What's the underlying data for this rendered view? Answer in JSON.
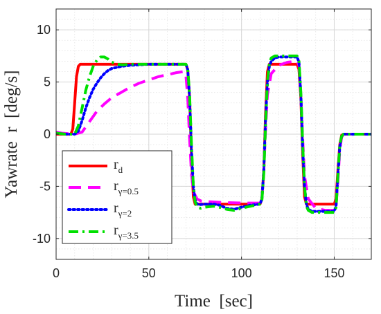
{
  "chart_data": {
    "type": "line",
    "xlabel": "Time  [sec]",
    "ylabel": "Yawrate  r  [deg/s]",
    "xlim": [
      0,
      170
    ],
    "ylim": [
      -12,
      12
    ],
    "xticks": [
      0,
      50,
      100,
      150
    ],
    "xtick_labels": [
      "0",
      "50",
      "100",
      "150"
    ],
    "yticks": [
      -10,
      -5,
      0,
      5,
      10
    ],
    "ytick_labels": [
      "-10",
      "-5",
      "0",
      "5",
      "10"
    ],
    "grid": true,
    "minor_grid": true,
    "legend_position": "lower-left",
    "series": [
      {
        "name": "r_d",
        "label_main": "r",
        "label_sub": "d",
        "color": "#ff0000",
        "style": "solid",
        "x": [
          0,
          8,
          9,
          10,
          11,
          12,
          13,
          70,
          71,
          72,
          73,
          74,
          75,
          110,
          111,
          112,
          113,
          114,
          115,
          130,
          131,
          132,
          133,
          134,
          135,
          150,
          151,
          152,
          153,
          154,
          155,
          170
        ],
        "y": [
          0,
          0,
          0.5,
          3,
          5.5,
          6.5,
          6.7,
          6.7,
          6.2,
          3.5,
          -2,
          -6,
          -6.7,
          -6.7,
          -6.2,
          -3.5,
          2,
          6,
          6.7,
          6.7,
          6.2,
          3.5,
          -2,
          -6,
          -6.7,
          -6.7,
          -6.2,
          -3.5,
          -1,
          -0.1,
          0,
          0
        ]
      },
      {
        "name": "r_γ=0.5",
        "label_main": "r",
        "label_sub": "γ=0.5",
        "color": "#ff00ff",
        "style": "dash",
        "x": [
          0,
          3,
          10,
          14,
          18,
          22,
          26,
          30,
          35,
          40,
          45,
          50,
          55,
          60,
          65,
          69,
          70,
          71,
          72,
          73,
          74,
          76,
          78,
          80,
          85,
          90,
          100,
          110,
          111,
          112,
          113,
          114,
          116,
          120,
          125,
          130,
          131,
          132,
          133,
          134,
          136,
          140,
          145,
          150,
          151,
          152,
          153,
          154,
          155,
          157,
          160,
          170
        ],
        "y": [
          0.2,
          0.1,
          0,
          0.2,
          1.2,
          2.2,
          2.9,
          3.5,
          4.0,
          4.5,
          4.9,
          5.2,
          5.5,
          5.7,
          5.9,
          6.0,
          5.6,
          3.5,
          -0.5,
          -3.8,
          -5.5,
          -6.2,
          -6.4,
          -6.45,
          -6.5,
          -6.55,
          -6.6,
          -6.6,
          -6.2,
          -3.5,
          0.5,
          3.8,
          5.8,
          6.6,
          6.9,
          7.0,
          6.6,
          3.8,
          -0.5,
          -4,
          -6.2,
          -7.1,
          -7.3,
          -7.3,
          -6.9,
          -4.5,
          -1.5,
          -0.3,
          0,
          0,
          0,
          0
        ]
      },
      {
        "name": "r_γ=2",
        "label_main": "r",
        "label_sub": "γ=2",
        "color": "#0000ff",
        "style": "dot",
        "x": [
          0,
          5,
          10,
          12,
          14,
          16,
          18,
          20,
          22,
          24,
          26,
          28,
          30,
          35,
          40,
          45,
          50,
          55,
          60,
          65,
          70,
          71,
          72,
          73,
          74,
          75,
          76,
          78,
          80,
          85,
          88,
          92,
          96,
          100,
          105,
          110,
          111,
          112,
          113,
          114,
          115,
          116,
          118,
          120,
          125,
          130,
          131,
          132,
          133,
          134,
          135,
          136,
          138,
          140,
          145,
          150,
          151,
          152,
          153,
          154,
          155,
          157,
          160,
          170
        ],
        "y": [
          0.1,
          0,
          0,
          0.3,
          1.3,
          2.5,
          3.5,
          4.3,
          4.9,
          5.4,
          5.8,
          6.1,
          6.3,
          6.5,
          6.6,
          6.65,
          6.7,
          6.7,
          6.7,
          6.7,
          6.7,
          6.2,
          3.5,
          -1.5,
          -5.0,
          -6.3,
          -6.7,
          -6.75,
          -6.7,
          -6.7,
          -6.8,
          -7.1,
          -7.2,
          -7.0,
          -6.8,
          -6.7,
          -6.2,
          -3.5,
          1.5,
          5.0,
          6.5,
          7.0,
          7.3,
          7.4,
          7.4,
          7.4,
          6.9,
          3.8,
          -1.5,
          -5.0,
          -6.7,
          -7.2,
          -7.4,
          -7.4,
          -7.4,
          -7.4,
          -6.9,
          -4.0,
          -1.2,
          -0.2,
          0,
          0,
          0,
          0
        ]
      },
      {
        "name": "r_γ=3.5",
        "label_main": "r",
        "label_sub": "γ=3.5",
        "color": "#00e000",
        "style": "dashdot",
        "x": [
          0,
          5,
          10,
          12,
          14,
          16,
          18,
          20,
          22,
          24,
          26,
          28,
          30,
          33,
          36,
          40,
          45,
          50,
          55,
          60,
          65,
          70,
          71,
          72,
          73,
          74,
          75,
          76,
          78,
          80,
          85,
          88,
          92,
          96,
          100,
          105,
          110,
          111,
          112,
          113,
          114,
          115,
          116,
          118,
          120,
          125,
          130,
          131,
          132,
          133,
          134,
          135,
          136,
          138,
          140,
          145,
          150,
          151,
          152,
          153,
          154,
          155,
          157,
          160,
          170
        ],
        "y": [
          0.1,
          0,
          0,
          0.8,
          2.5,
          4.2,
          5.5,
          6.5,
          7.1,
          7.4,
          7.4,
          7.2,
          6.9,
          6.7,
          6.65,
          6.7,
          6.7,
          6.7,
          6.7,
          6.7,
          6.7,
          6.7,
          6.3,
          3.8,
          -1.0,
          -5.0,
          -6.5,
          -7.0,
          -7.1,
          -7.0,
          -6.9,
          -7.0,
          -7.2,
          -7.3,
          -7.1,
          -6.9,
          -6.7,
          -6.3,
          -3.8,
          1.0,
          5.0,
          6.8,
          7.3,
          7.5,
          7.5,
          7.5,
          7.5,
          7.0,
          4.0,
          -1.0,
          -5.0,
          -6.9,
          -7.3,
          -7.5,
          -7.5,
          -7.5,
          -7.5,
          -7.0,
          -4.0,
          -1.0,
          -0.2,
          0,
          0,
          0,
          0
        ]
      }
    ]
  }
}
